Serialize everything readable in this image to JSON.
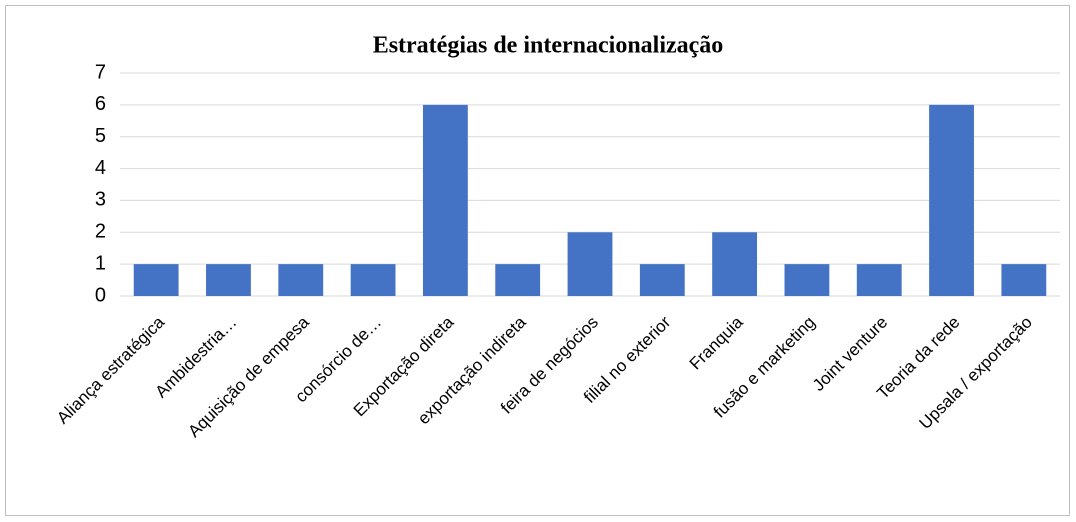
{
  "chart_data": {
    "type": "bar",
    "title": "Estratégias de internacionalização",
    "categories": [
      "Aliança estratégica",
      "Ambidestria…",
      "Aquisição de empesa",
      "consórcio de…",
      "Exportação direta",
      "exportação indireta",
      "feira de negócios",
      "filial no exterior",
      "Franquia",
      "fusão e marketing",
      "Joint venture",
      "Teoria da rede",
      "Upsala / exportação"
    ],
    "values": [
      1,
      1,
      1,
      1,
      6,
      1,
      2,
      1,
      2,
      1,
      1,
      6,
      1
    ],
    "color": "#4472c4",
    "ylim": [
      0,
      7
    ],
    "yticks": [
      0,
      1,
      2,
      3,
      4,
      5,
      6,
      7
    ],
    "grid": true
  }
}
